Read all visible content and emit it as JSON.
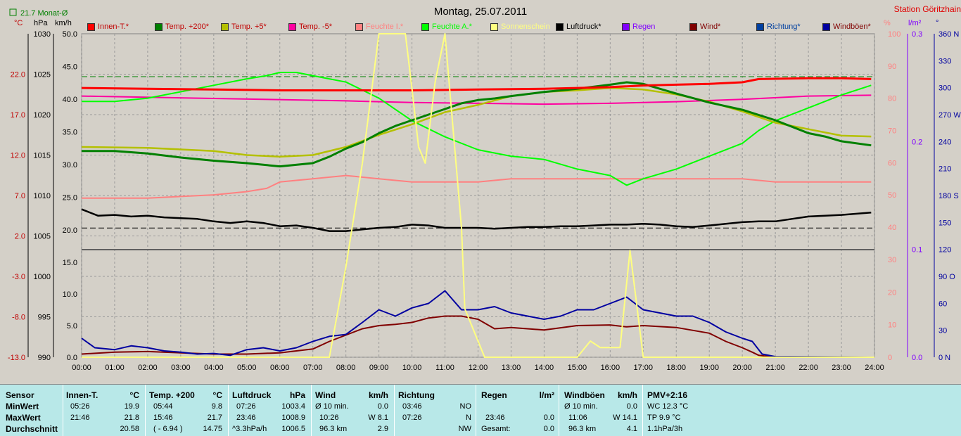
{
  "header": {
    "title": "Montag, 25.07.2011",
    "station": "Station Göritzhain",
    "month_avg": "21.7 Monat-Ø",
    "unit_celsius": "°C",
    "unit_hpa": "hPa",
    "unit_kmh": "km/h",
    "unit_percent": "%",
    "unit_lm2": "l/m²",
    "unit_degree": "°"
  },
  "colors": {
    "background": "#d4d0c8",
    "plot_area": "#d4d0c8",
    "innen": "#ff0000",
    "temp200": "#008000",
    "temp5": "#b4c000",
    "tempm5": "#ff00a0",
    "feuchte_i": "#ff8080",
    "feuchte_a": "#00ff00",
    "sonnenschein": "#ffff80",
    "luftdruck": "#000000",
    "regen": "#8000ff",
    "wind": "#800000",
    "richtung": "#0040a0",
    "windboeen": "#0000a0",
    "table_bg": "#b8e8e8"
  },
  "legend": [
    {
      "label": "Innen-T.*",
      "color": "#ff0000"
    },
    {
      "label": "Temp. +200*",
      "color": "#008000"
    },
    {
      "label": "Temp. +5*",
      "color": "#b4c000"
    },
    {
      "label": "Temp. -5*",
      "color": "#ff00a0"
    },
    {
      "label": "Feuchte I.*",
      "color": "#ff8080"
    },
    {
      "label": "Feuchte A.*",
      "color": "#00ff00"
    },
    {
      "label": "Sonnenschein",
      "color": "#ffff80"
    },
    {
      "label": "Luftdruck*",
      "color": "#000000"
    },
    {
      "label": "Regen",
      "color": "#8000ff"
    },
    {
      "label": "Wind*",
      "color": "#800000"
    },
    {
      "label": "Richtung*",
      "color": "#0040a0"
    },
    {
      "label": "Windböen*",
      "color": "#0000a0"
    }
  ],
  "chart_data": {
    "type": "line",
    "x_ticks": [
      "00:00",
      "01:00",
      "02:00",
      "03:00",
      "04:00",
      "05:00",
      "06:00",
      "07:00",
      "08:00",
      "09:00",
      "10:00",
      "11:00",
      "12:00",
      "13:00",
      "14:00",
      "15:00",
      "16:00",
      "17:00",
      "18:00",
      "19:00",
      "20:00",
      "21:00",
      "22:00",
      "23:00",
      "24:00"
    ],
    "axes": {
      "temp_c": {
        "ticks": [
          "22.0",
          "17.0",
          "12.0",
          "7.0",
          "2.0",
          "-3.0",
          "-8.0",
          "-13.0"
        ],
        "range": [
          -13,
          27
        ]
      },
      "pressure_hpa": {
        "ticks": [
          "1030",
          "1025",
          "1020",
          "1015",
          "1010",
          "1005",
          "1000",
          "995",
          "990"
        ],
        "range": [
          990,
          1030
        ]
      },
      "upper_kmh": {
        "ticks": [
          "50.0",
          "45.0",
          "40.0",
          "35.0",
          "30.0",
          "25.0",
          "20.0"
        ],
        "range": [
          17,
          50
        ]
      },
      "lower_kmh": {
        "ticks": [
          "15.0",
          "10.0",
          "5.0",
          "0.0"
        ],
        "range": [
          0,
          17
        ]
      },
      "upper_percent": {
        "ticks": [
          "100",
          "90",
          "80",
          "70",
          "60",
          "50",
          "40"
        ],
        "range": [
          33,
          100
        ]
      },
      "lower_percent": {
        "ticks": [
          "30",
          "20",
          "10",
          "0"
        ],
        "range": [
          0,
          33
        ]
      },
      "rain_lm2": {
        "ticks": [
          "0.3",
          "0.2",
          "0.1",
          "0.0"
        ],
        "range": [
          0,
          0.3
        ]
      },
      "direction_deg": {
        "ticks": [
          "360 N",
          "330",
          "300",
          "270 W",
          "240",
          "210",
          "180 S",
          "150",
          "120",
          "90 O",
          "60",
          "30",
          "0 N"
        ],
        "range": [
          0,
          360
        ]
      }
    },
    "reference_lines": {
      "green_dashed_c": 21.7,
      "black_dashed_kmh": 20.3
    },
    "series": [
      {
        "name": "Innen-T.*",
        "unit": "°C",
        "x": [
          0,
          2,
          4,
          6,
          8,
          10,
          12,
          14,
          15,
          16,
          17,
          18,
          19,
          20,
          20.5,
          22,
          23,
          23.9
        ],
        "y": [
          20.3,
          20.2,
          20.1,
          20.0,
          20.0,
          20.0,
          20.1,
          20.2,
          20.3,
          20.4,
          20.6,
          20.7,
          20.8,
          21.0,
          21.4,
          21.5,
          21.5,
          21.4
        ]
      },
      {
        "name": "Temp. +200*",
        "unit": "°C",
        "x": [
          0,
          1,
          2,
          3,
          4,
          5,
          6,
          7,
          7.5,
          8,
          8.5,
          9,
          9.5,
          10,
          10.5,
          11,
          11.5,
          12,
          12.5,
          13,
          14,
          15,
          16,
          16.5,
          17,
          18,
          19,
          20,
          21,
          22,
          22.5,
          23,
          23.9
        ],
        "y": [
          12.5,
          12.5,
          12.2,
          11.7,
          11.3,
          11.0,
          10.6,
          11.0,
          11.8,
          12.8,
          13.6,
          14.7,
          15.6,
          16.3,
          17.0,
          17.7,
          18.4,
          18.8,
          19.0,
          19.3,
          19.8,
          20.2,
          20.7,
          21.0,
          20.8,
          19.6,
          18.5,
          17.6,
          16.3,
          14.7,
          14.3,
          13.7,
          13.2
        ]
      },
      {
        "name": "Temp. +5*",
        "unit": "°C",
        "x": [
          0,
          2,
          4,
          5,
          6,
          7,
          8,
          9,
          10,
          11,
          12,
          13,
          14,
          15,
          16,
          17,
          18,
          19,
          20,
          21,
          22,
          23,
          23.9
        ],
        "y": [
          13.0,
          12.9,
          12.5,
          12.0,
          11.8,
          12.0,
          13.0,
          14.5,
          15.8,
          17.3,
          18.2,
          19.3,
          19.8,
          20.0,
          20.3,
          20.1,
          19.5,
          18.6,
          17.4,
          16.0,
          15.2,
          14.4,
          14.3
        ]
      },
      {
        "name": "Temp. -5*",
        "unit": "°C",
        "x": [
          0,
          4,
          8,
          10,
          12,
          14,
          16,
          18,
          20,
          22,
          23.9
        ],
        "y": [
          19.3,
          19.0,
          18.7,
          18.5,
          18.4,
          18.3,
          18.4,
          18.6,
          18.9,
          19.3,
          19.4
        ]
      },
      {
        "name": "Feuchte I.*",
        "unit": "%",
        "x": [
          0,
          2,
          4,
          5,
          5.6,
          6,
          7,
          8,
          9,
          10,
          11,
          12,
          13,
          14,
          15,
          16,
          17,
          18,
          19,
          20,
          21,
          22,
          23,
          23.9
        ],
        "y": [
          49,
          49,
          50,
          51,
          52,
          54,
          55,
          56,
          55,
          54,
          54,
          54,
          55,
          55,
          55,
          55,
          55,
          55,
          55,
          55,
          54,
          54,
          54,
          54
        ]
      },
      {
        "name": "Feuchte A.*",
        "unit": "%",
        "x": [
          0,
          1,
          2,
          3,
          4,
          5,
          5.6,
          6,
          6.5,
          7,
          8,
          9,
          10,
          11,
          12,
          13,
          14,
          15,
          16,
          16.5,
          17,
          18,
          19,
          20,
          20.5,
          21,
          22,
          23,
          23.9
        ],
        "y": [
          79,
          79,
          80,
          82,
          84,
          86,
          87,
          88,
          88,
          87,
          85,
          80,
          73,
          68,
          64,
          62,
          61,
          58,
          56,
          53,
          55,
          58,
          62,
          66,
          70,
          73,
          77,
          81,
          84
        ]
      },
      {
        "name": "Sonnenschein",
        "unit": "%",
        "x": [
          0,
          7.5,
          8,
          8.5,
          9,
          9.3,
          9.8,
          10,
          10.2,
          10.4,
          10.7,
          11,
          11.5,
          11.6,
          12,
          12.2,
          12.6,
          13,
          15,
          15.4,
          15.7,
          16,
          16.3,
          16.6,
          17,
          24
        ],
        "y": [
          0,
          0,
          28,
          60,
          100,
          100,
          100,
          83,
          65,
          60,
          85,
          100,
          40,
          15,
          5,
          0,
          0,
          0,
          0,
          5,
          3,
          3,
          3,
          33,
          0,
          0
        ]
      },
      {
        "name": "Luftdruck*",
        "unit": "hPa",
        "x": [
          0,
          0.5,
          1,
          1.5,
          2,
          2.5,
          3,
          3.5,
          4,
          4.5,
          5,
          5.5,
          6,
          6.5,
          7,
          7.5,
          8,
          8.5,
          9,
          9.5,
          10,
          10.5,
          11,
          11.5,
          12,
          12.5,
          13,
          13.5,
          14,
          14.5,
          15,
          15.5,
          16,
          16.5,
          17,
          17.5,
          18,
          18.5,
          19,
          19.5,
          20,
          20.5,
          21,
          21.5,
          22,
          22.5,
          23,
          23.9
        ],
        "y": [
          1008.3,
          1007.5,
          1007.6,
          1007.4,
          1007.5,
          1007.3,
          1007.2,
          1007.1,
          1006.8,
          1006.6,
          1006.8,
          1006.6,
          1006.2,
          1006.3,
          1006.0,
          1005.6,
          1005.6,
          1005.8,
          1006.0,
          1006.1,
          1006.4,
          1006.3,
          1006.0,
          1006.0,
          1006.0,
          1005.9,
          1006.0,
          1006.1,
          1006.1,
          1006.2,
          1006.2,
          1006.3,
          1006.4,
          1006.4,
          1006.5,
          1006.4,
          1006.2,
          1006.1,
          1006.3,
          1006.5,
          1006.7,
          1006.8,
          1006.8,
          1007.1,
          1007.4,
          1007.5,
          1007.6,
          1007.9
        ]
      },
      {
        "name": "Wind*",
        "unit": "km/h",
        "x": [
          0,
          1,
          2,
          3,
          4,
          5,
          6,
          7,
          7.5,
          8,
          8.5,
          9,
          9.5,
          10,
          10.5,
          11,
          11.5,
          12,
          12.5,
          13,
          14,
          15,
          16,
          16.5,
          17,
          18,
          19,
          19.5,
          20,
          20.3,
          20.5,
          21,
          24
        ],
        "y": [
          0.5,
          0.8,
          0.9,
          0.7,
          0.5,
          0.5,
          0.7,
          1.3,
          2.5,
          3.5,
          4.5,
          5.0,
          5.2,
          5.5,
          6.2,
          6.5,
          6.5,
          6.0,
          4.5,
          4.7,
          4.3,
          5.0,
          5.1,
          4.8,
          5.0,
          4.7,
          3.8,
          2.5,
          1.5,
          0.8,
          0.3,
          0.0,
          0.0
        ]
      },
      {
        "name": "Windböen*",
        "unit": "km/h",
        "x": [
          0,
          0.4,
          1,
          1.5,
          2,
          2.5,
          3,
          3.5,
          4,
          4.5,
          5,
          5.5,
          6,
          6.5,
          7,
          7.5,
          8,
          8.5,
          9,
          9.5,
          10,
          10.5,
          11,
          11.5,
          12,
          12.5,
          13,
          13.5,
          14,
          14.5,
          15,
          15.5,
          16,
          16.5,
          17,
          17.5,
          18,
          18.5,
          19,
          19.5,
          20,
          20.3,
          20.6,
          21,
          24
        ],
        "y": [
          3.0,
          1.5,
          1.2,
          1.8,
          1.5,
          1.0,
          0.8,
          0.5,
          0.6,
          0.3,
          1.2,
          1.5,
          1.0,
          1.5,
          2.5,
          3.3,
          3.6,
          5.5,
          7.5,
          6.5,
          7.8,
          8.5,
          10.5,
          7.5,
          7.5,
          8.0,
          7.0,
          6.5,
          6.0,
          6.5,
          7.5,
          7.5,
          8.5,
          9.5,
          7.5,
          7.0,
          6.5,
          6.5,
          5.5,
          4.0,
          3.0,
          2.5,
          0.5,
          0.1,
          0.0
        ]
      }
    ]
  },
  "table": {
    "row_labels": {
      "title": "Sensor",
      "min": "MinWert",
      "max": "MaxWert",
      "avg": "Durchschnitt"
    },
    "innen": {
      "title": "Innen-T.",
      "unit": "°C",
      "min_time": "05:26",
      "min_val": "19.9",
      "max_time": "21:46",
      "max_val": "21.8",
      "avg_val": "20.58"
    },
    "temp200": {
      "title": "Temp. +200",
      "unit": "°C",
      "min_time": "05:44",
      "min_val": "9.8",
      "max_time": "15:46",
      "max_val": "21.7",
      "avg_extra": "( - 6.94 )",
      "avg_val": "14.75"
    },
    "luftdruck": {
      "title": "Luftdruck",
      "unit": "hPa",
      "min_time": "07:26",
      "min_val": "1003.4",
      "max_time": "23:46",
      "max_val": "1008.9",
      "avg_extra": "^3.3hPa/h",
      "avg_val": "1006.5"
    },
    "wind": {
      "title": "Wind",
      "unit": "km/h",
      "min_time": "Ø 10 min.",
      "min_val": "0.0",
      "max_time": "10:26",
      "max_val": "W 8.1",
      "avg_extra": "96.3 km",
      "avg_val": "2.9"
    },
    "richtung": {
      "title": "Richtung",
      "min_time": "03:46",
      "min_val": "NO",
      "max_time": "07:26",
      "max_val": "N",
      "avg_val": "NW"
    },
    "regen": {
      "title": "Regen",
      "unit": "l/m²",
      "max_time": "23:46",
      "max_val": "0.0",
      "avg_extra": "Gesamt:",
      "avg_val": "0.0"
    },
    "windboeen": {
      "title": "Windböen",
      "unit": "km/h",
      "min_time": "Ø 10 min.",
      "min_val": "0.0",
      "max_time": "11:06",
      "max_val": "W 14.1",
      "avg_extra": "96.3 km",
      "avg_val": "4.1"
    },
    "pmv": {
      "title": "PMV+2:16",
      "line1": "WC 12.3 °C",
      "line2": "TP 9.9 °C",
      "line3": "1.1hPa/3h"
    }
  }
}
